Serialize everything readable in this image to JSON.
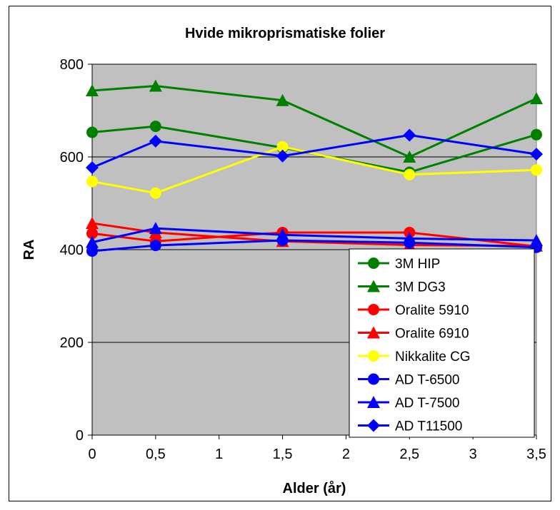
{
  "chart_data": {
    "type": "line",
    "title": "Hvide mikroprismatiske folier",
    "xlabel": "Alder (år)",
    "ylabel": "RA",
    "x": [
      0,
      0.5,
      1.5,
      2.5,
      3.5
    ],
    "xlim": [
      0,
      3.5
    ],
    "ylim": [
      0,
      800
    ],
    "x_ticks": [
      "0",
      "0,5",
      "1",
      "1,5",
      "2",
      "2,5",
      "3",
      "3,5"
    ],
    "x_tick_values": [
      0,
      0.5,
      1,
      1.5,
      2,
      2.5,
      3,
      3.5
    ],
    "y_ticks": [
      "0",
      "200",
      "400",
      "600",
      "800"
    ],
    "y_tick_values": [
      0,
      200,
      400,
      600,
      800
    ],
    "grid": "horizontal",
    "plot_background": "#c0c0c0",
    "legend_position": "bottom-right",
    "series": [
      {
        "name": "3M HIP",
        "color": "#008000",
        "marker": "circle",
        "values": [
          653,
          666,
          620,
          567,
          648
        ]
      },
      {
        "name": "3M DG3",
        "color": "#008000",
        "marker": "triangle",
        "values": [
          743,
          753,
          722,
          600,
          726
        ]
      },
      {
        "name": "Oralite 5910",
        "color": "#ff0000",
        "marker": "circle",
        "values": [
          435,
          418,
          437,
          437,
          407
        ]
      },
      {
        "name": "Oralite 6910",
        "color": "#ff0000",
        "marker": "triangle",
        "values": [
          457,
          437,
          418,
          410,
          408
        ]
      },
      {
        "name": "Nikkalite CG",
        "color": "#ffff00",
        "marker": "circle",
        "values": [
          547,
          522,
          622,
          562,
          572
        ]
      },
      {
        "name": "AD T-6500",
        "color": "#0000ff",
        "marker": "circle",
        "values": [
          397,
          409,
          420,
          415,
          405
        ]
      },
      {
        "name": "AD T-7500",
        "color": "#0000ff",
        "marker": "triangle",
        "values": [
          416,
          446,
          432,
          424,
          420
        ]
      },
      {
        "name": "AD T11500",
        "color": "#0000ff",
        "marker": "diamond",
        "values": [
          577,
          634,
          602,
          647,
          606
        ]
      }
    ]
  }
}
